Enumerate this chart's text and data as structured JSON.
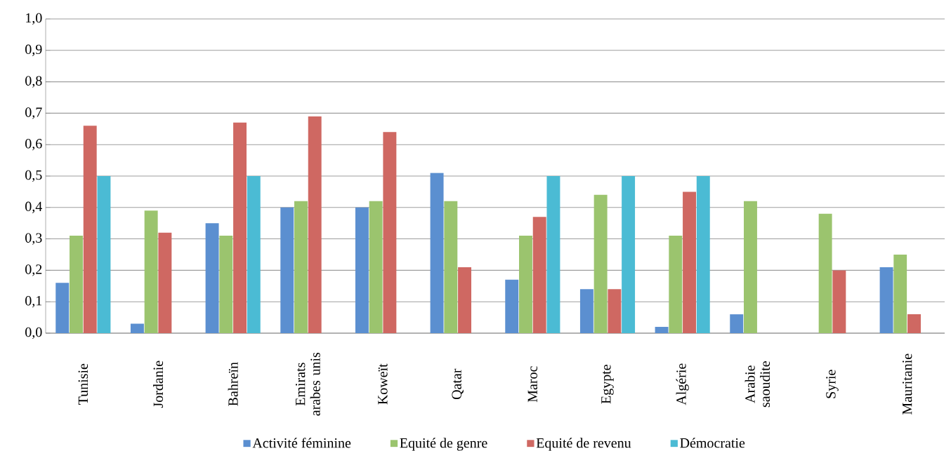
{
  "chart_data": {
    "type": "bar",
    "categories": [
      "Tunisie",
      "Jordanie",
      "Bahreïn",
      "Emirats arabes unis",
      "Koweït",
      "Qatar",
      "Maroc",
      "Egypte",
      "Algérie",
      "Arabie saoudite",
      "Syrie",
      "Mauritanie"
    ],
    "series": [
      {
        "name": "Activité féminine",
        "color": "#5b8fd0",
        "values": [
          0.16,
          0.03,
          0.35,
          0.4,
          0.4,
          0.51,
          0.17,
          0.14,
          0.02,
          0.06,
          null,
          0.21
        ]
      },
      {
        "name": "Equité de genre",
        "color": "#9bc46e",
        "values": [
          0.31,
          0.39,
          0.31,
          0.42,
          0.42,
          0.42,
          0.31,
          0.44,
          0.31,
          0.42,
          0.38,
          0.25
        ]
      },
      {
        "name": "Equité de revenu",
        "color": "#cf6862",
        "values": [
          0.66,
          0.32,
          0.67,
          0.69,
          0.64,
          0.21,
          0.37,
          0.14,
          0.45,
          null,
          0.2,
          0.06
        ]
      },
      {
        "name": "Démocratie",
        "color": "#4bbbd4",
        "values": [
          0.5,
          null,
          0.5,
          null,
          null,
          null,
          0.5,
          0.5,
          0.5,
          null,
          null,
          null
        ]
      }
    ],
    "ylim": [
      0,
      1
    ],
    "yticks": [
      {
        "value": 0,
        "label": "0,0"
      },
      {
        "value": 0.1,
        "label": "0,1"
      },
      {
        "value": 0.2,
        "label": "0,2"
      },
      {
        "value": 0.3,
        "label": "0,3"
      },
      {
        "value": 0.4,
        "label": "0,4"
      },
      {
        "value": 0.5,
        "label": "0,5"
      },
      {
        "value": 0.6,
        "label": "0,6"
      },
      {
        "value": 0.7,
        "label": "0,7"
      },
      {
        "value": 0.8,
        "label": "0,8"
      },
      {
        "value": 0.9,
        "label": "0,9"
      },
      {
        "value": 1.0,
        "label": "1,0"
      }
    ],
    "grid": "y",
    "legend": "bottom"
  }
}
